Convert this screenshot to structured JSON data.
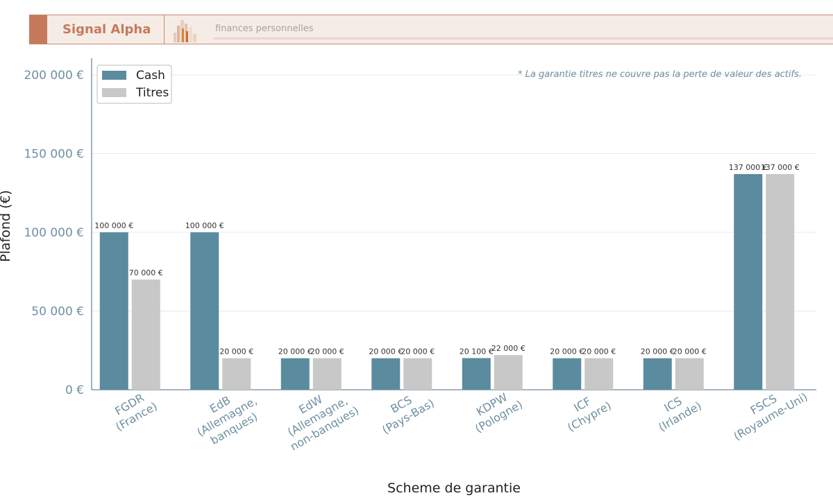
{
  "header": {
    "brand": "Signal Alpha",
    "subtitle": "finances personnelles",
    "logo_icon": "bar-city-logo-icon"
  },
  "chart_data": {
    "type": "bar",
    "categories": [
      [
        "FGDR",
        "(France)"
      ],
      [
        "EdB",
        "(Allemagne,",
        "banques)"
      ],
      [
        "EdW",
        "(Allemagne,",
        "non-banques)"
      ],
      [
        "BCS",
        "(Pays-Bas)"
      ],
      [
        "KDPW",
        "(Pologne)"
      ],
      [
        "ICF",
        "(Chypre)"
      ],
      [
        "ICS",
        "(Irlande)"
      ],
      [
        "FSCS",
        "(Royaume-Uni)"
      ]
    ],
    "series": [
      {
        "name": "Cash",
        "color": "#5b8b9e",
        "values": [
          100000,
          100000,
          20000,
          20000,
          20100,
          20000,
          20000,
          137000
        ],
        "value_labels": [
          "100 000 €",
          "100 000 €",
          "20 000 €",
          "20 000 €",
          "20 100 €",
          "20 000 €",
          "20 000 €",
          "137 000 €"
        ]
      },
      {
        "name": "Titres",
        "color": "#c8c8c8",
        "values": [
          70000,
          20000,
          20000,
          20000,
          22000,
          20000,
          20000,
          137000
        ],
        "value_labels": [
          "70 000 €",
          "20 000 €",
          "20 000 €",
          "20 000 €",
          "22 000 €",
          "20 000 €",
          "20 000 €",
          "137 000 €"
        ]
      }
    ],
    "xlabel": "Scheme de garantie",
    "ylabel": "Plafond (€)",
    "ylim": [
      0,
      200000
    ],
    "yticks": [
      0,
      50000,
      100000,
      150000,
      200000
    ],
    "ytick_labels": [
      "0 €",
      "50 000 €",
      "100 000 €",
      "150 000 €",
      "200 000 €"
    ],
    "annotation": "* La garantie titres ne couvre pas la perte de valeur des actifs.",
    "grid": true,
    "legend_position": "top-left",
    "axis_color": "#6a8a99",
    "tick_label_color": "#6f8fa0"
  }
}
